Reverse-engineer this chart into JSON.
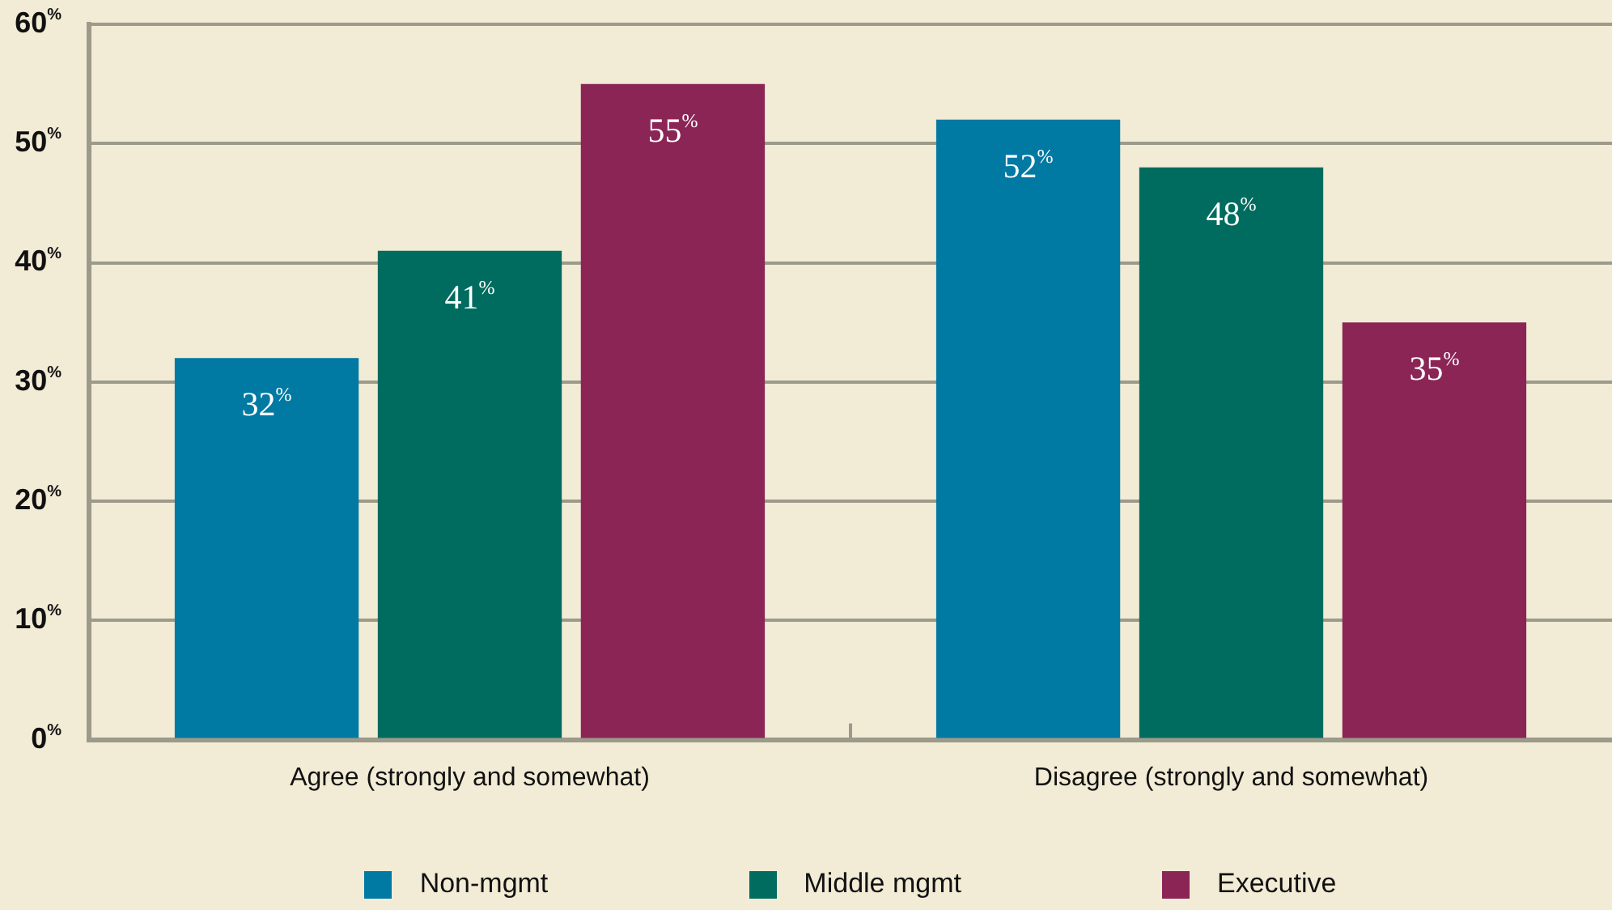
{
  "chart_data": {
    "type": "bar",
    "categories": [
      "Agree (strongly and somewhat)",
      "Disagree (strongly and somewhat)"
    ],
    "series": [
      {
        "name": "Non-mgmt",
        "color": "#0079a3",
        "values": [
          32,
          52
        ],
        "value_labels": [
          "32$^{%}$",
          "52$^{%}$"
        ]
      },
      {
        "name": "Middle mgmt",
        "color": "#006b5f",
        "values": [
          41,
          48
        ],
        "value_labels": [
          "41$^{%}$",
          "48$^{%}$"
        ]
      },
      {
        "name": "Executive",
        "color": "#8a2556",
        "values": [
          55,
          35
        ],
        "value_labels": [
          "55$^{%}$",
          "35$^{%}$"
        ]
      }
    ],
    "ylim": [
      0,
      60
    ],
    "yticks": [
      {
        "value": 0,
        "label": "0$^{%}$"
      },
      {
        "value": 10,
        "label": "10$^{%}$"
      },
      {
        "value": 20,
        "label": "20$^{%}$"
      },
      {
        "value": 30,
        "label": "30$^{%}$"
      },
      {
        "value": 40,
        "label": "40$^{%}$"
      },
      {
        "value": 50,
        "label": "50$^{%}$"
      },
      {
        "value": 60,
        "label": "60$^{%}$"
      }
    ],
    "grid": "y",
    "legend": "bottom"
  }
}
